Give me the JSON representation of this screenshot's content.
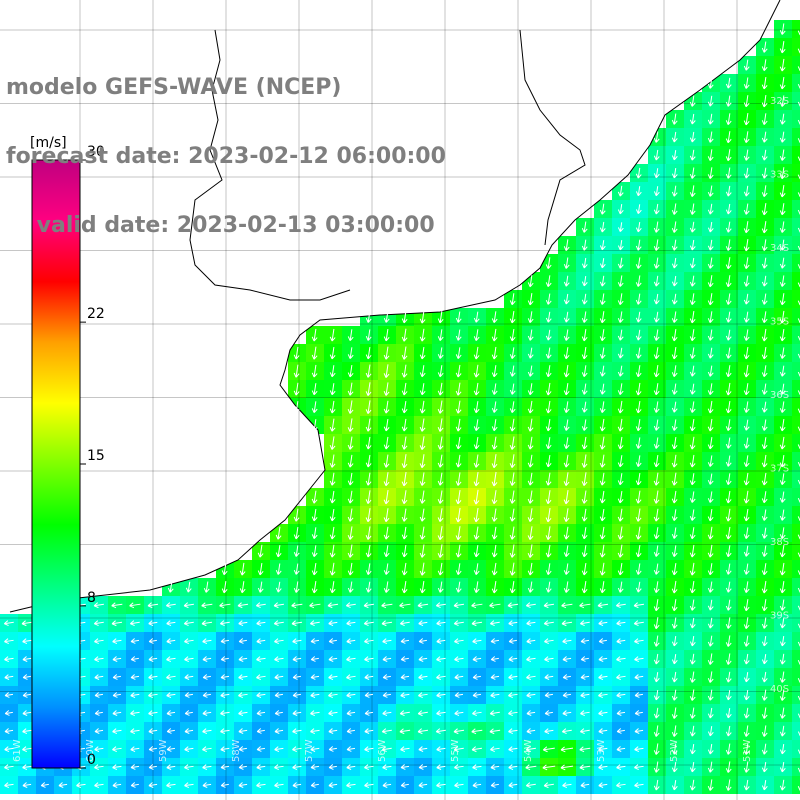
{
  "title": {
    "line1": "modelo GEFS-WAVE (NCEP)",
    "line2": "forecast date: 2023-02-12 06:00:00",
    "line3": "    valid date: 2023-02-13 03:00:00"
  },
  "colorbar": {
    "unit": "[m/s]",
    "ticks": [
      "30",
      "22",
      "15",
      "8",
      "0"
    ],
    "colors": [
      "#0000ff",
      "#0090ff",
      "#00ffff",
      "#00ff80",
      "#00ff00",
      "#80ff00",
      "#ffff00",
      "#ffa000",
      "#ff0000",
      "#ff0080",
      "#c00080"
    ]
  },
  "lat_labels": [
    "32S",
    "33S",
    "34S",
    "35S",
    "36S",
    "37S",
    "38S",
    "39S",
    "40S"
  ],
  "lon_labels": [
    "61W",
    "60W",
    "59W",
    "58W",
    "57W",
    "56W",
    "55W",
    "54W",
    "53W",
    "52W",
    "51W"
  ],
  "colors": {
    "land": "#ffffff",
    "grid": "#000000",
    "coast": "#000000",
    "arrow": "#ffffff",
    "title": "#7f7f7f"
  },
  "map": {
    "field_variable": "wind speed",
    "vector_variable": "wind direction"
  }
}
